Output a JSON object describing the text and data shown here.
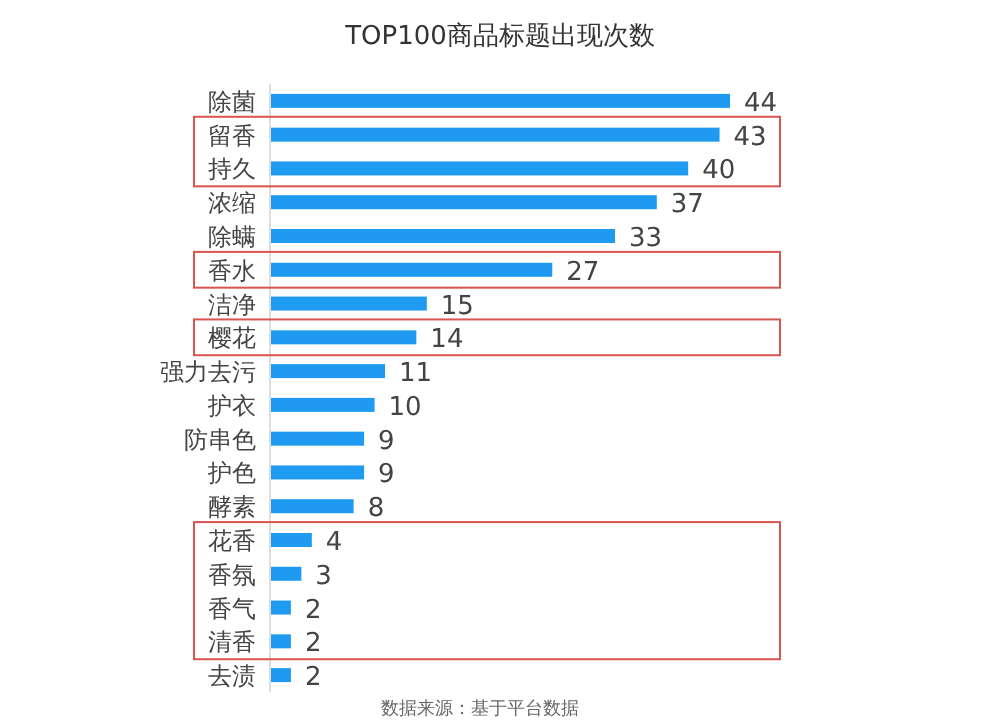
{
  "chart_data": {
    "type": "bar",
    "orientation": "horizontal",
    "title": "TOP100商品标题出现次数",
    "categories": [
      "除菌",
      "留香",
      "持久",
      "浓缩",
      "除螨",
      "香水",
      "洁净",
      "樱花",
      "强力去污",
      "护衣",
      "防串色",
      "护色",
      "酵素",
      "花香",
      "香氛",
      "香气",
      "清香",
      "去渍"
    ],
    "values": [
      44,
      43,
      40,
      37,
      33,
      27,
      15,
      14,
      11,
      10,
      9,
      9,
      8,
      4,
      3,
      2,
      2,
      2
    ],
    "color": "#1e9bf0",
    "data_labels": true,
    "annotations": [
      "数据来源：基于平台数据"
    ]
  }
}
